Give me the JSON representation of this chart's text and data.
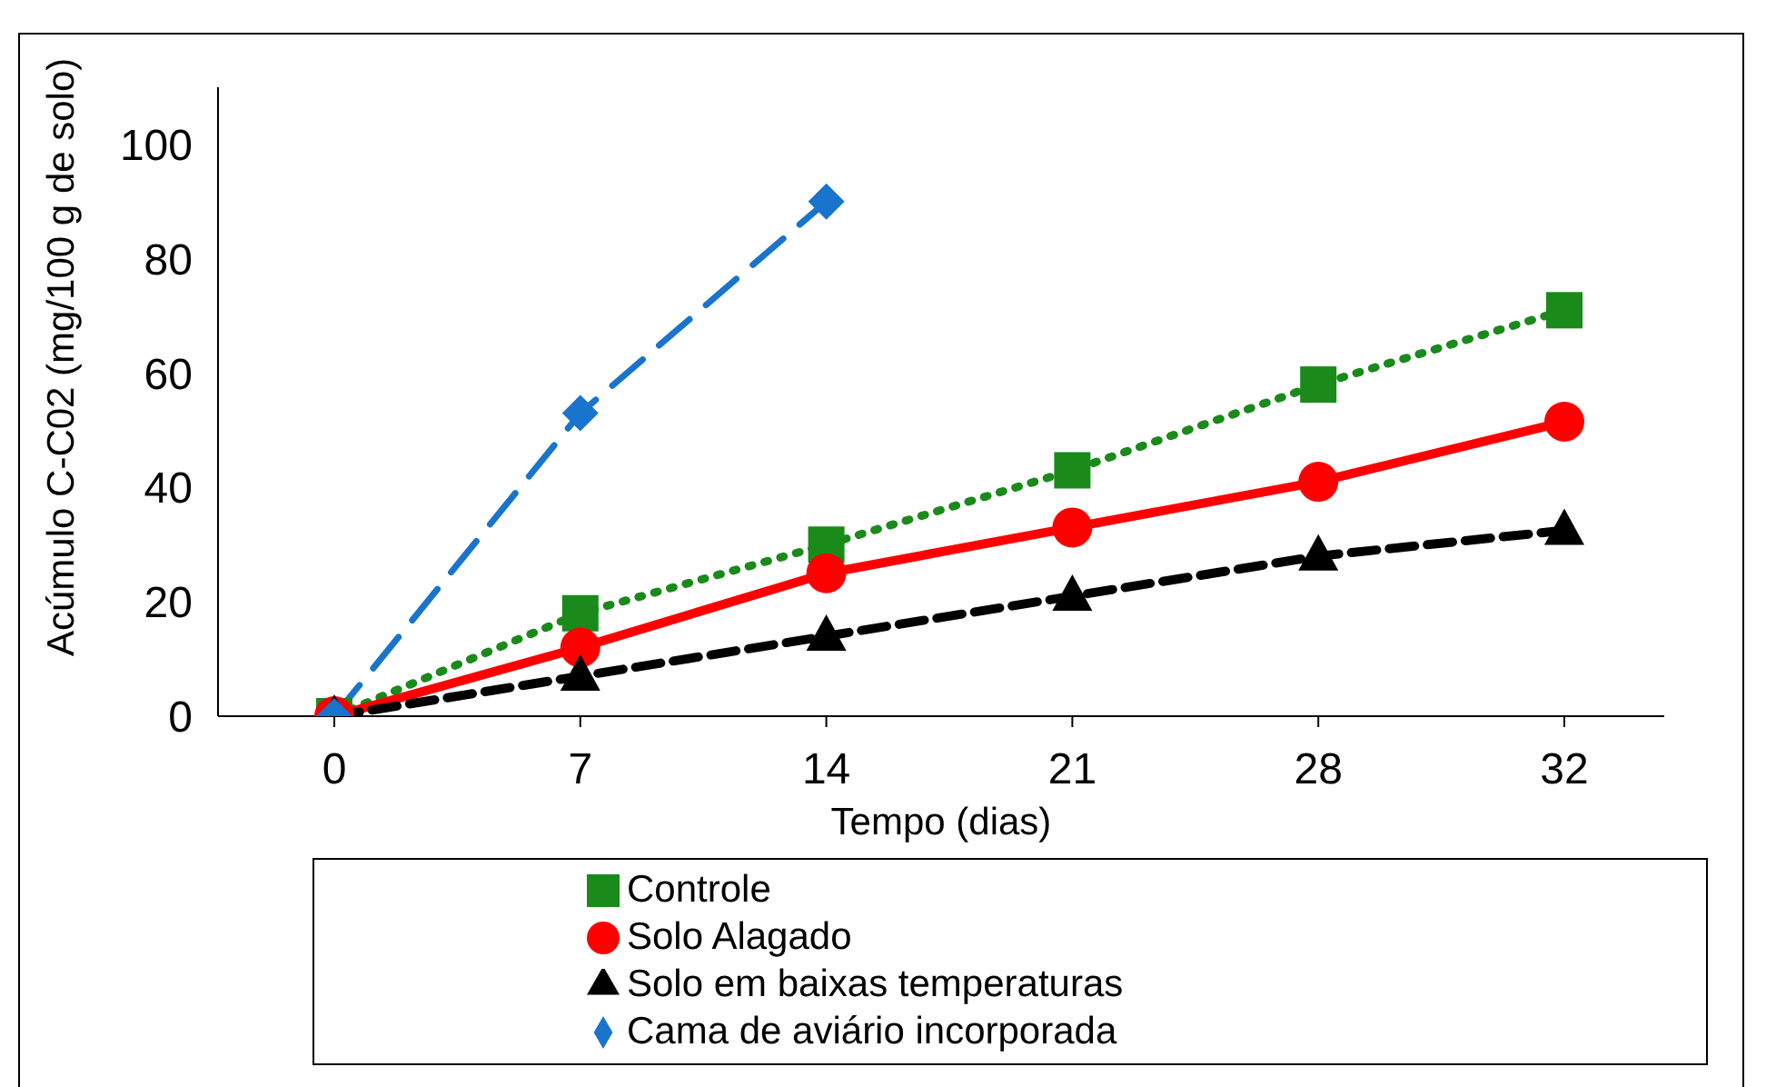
{
  "chart_data": {
    "type": "line",
    "xlabel": "Tempo  (dias)",
    "ylabel": "Acúmulo C-C02 (mg/100 g de solo)",
    "categories": [
      "0",
      "7",
      "14",
      "21",
      "28",
      "32"
    ],
    "series": [
      {
        "name": "Controle",
        "color": "#1a8a1a",
        "values": [
          0,
          18,
          30,
          43,
          58,
          71
        ],
        "marker": "square",
        "line_style": "dotted"
      },
      {
        "name": "Solo Alagado",
        "color": "#ff0000",
        "values": [
          0,
          12,
          25,
          33,
          41,
          51.5
        ],
        "marker": "circle",
        "line_style": "solid"
      },
      {
        "name": "Solo em baixas temperaturas",
        "color": "#000000",
        "values": [
          0,
          7,
          14,
          21,
          28,
          32.5
        ],
        "marker": "triangle",
        "line_style": "dashed"
      },
      {
        "name": "Cama de aviário incorporada",
        "color": "#1874cd",
        "values": [
          0,
          53,
          90,
          null,
          null,
          null
        ],
        "marker": "diamond",
        "line_style": "longdash"
      }
    ],
    "ylim": [
      0,
      110
    ],
    "yticks": [
      0,
      20,
      40,
      60,
      80,
      100
    ],
    "grid": false,
    "legend": "bottom"
  }
}
